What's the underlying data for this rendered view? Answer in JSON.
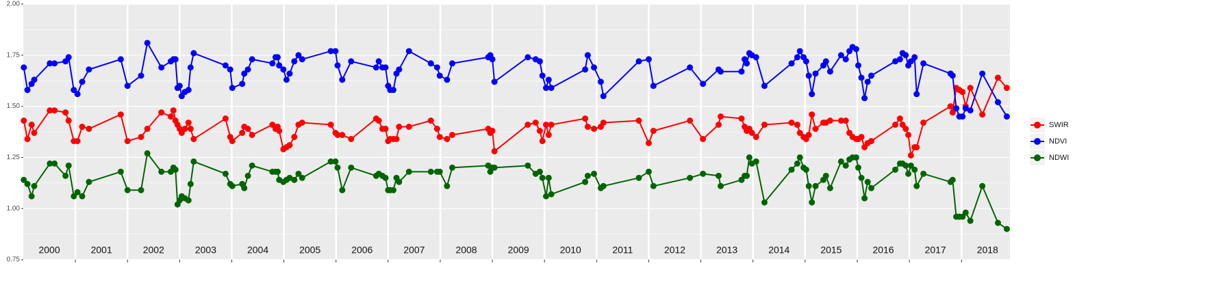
{
  "chart_data": {
    "type": "line",
    "x": [
      2000.01,
      2000.08,
      2000.16,
      2000.21,
      2000.51,
      2000.6,
      2000.81,
      2000.87,
      2000.97,
      2001.04,
      2001.13,
      2001.26,
      2001.87,
      2002.0,
      2002.26,
      2002.38,
      2002.65,
      2002.83,
      2002.88,
      2002.92,
      2002.96,
      2003.0,
      2003.04,
      2003.1,
      2003.17,
      2003.21,
      2003.27,
      2003.88,
      2003.97,
      2004.01,
      2004.2,
      2004.24,
      2004.31,
      2004.39,
      2004.78,
      2004.84,
      2004.88,
      2004.91,
      2004.99,
      2005.05,
      2005.11,
      2005.2,
      2005.28,
      2005.35,
      2005.9,
      2005.99,
      2006.03,
      2006.12,
      2006.29,
      2006.77,
      2006.82,
      2006.89,
      2006.95,
      2007.0,
      2007.04,
      2007.1,
      2007.16,
      2007.21,
      2007.4,
      2007.82,
      2007.94,
      2007.99,
      2008.13,
      2008.23,
      2008.92,
      2008.96,
      2009.0,
      2009.04,
      2009.68,
      2009.83,
      2009.91,
      2009.96,
      2010.03,
      2010.08,
      2010.13,
      2010.78,
      2010.83,
      2010.95,
      2011.08,
      2011.13,
      2011.81,
      2012.0,
      2012.09,
      2012.79,
      2013.04,
      2013.34,
      2013.38,
      2013.78,
      2013.84,
      2013.88,
      2013.93,
      2013.98,
      2014.06,
      2014.22,
      2014.74,
      2014.85,
      2014.9,
      2014.97,
      2015.02,
      2015.07,
      2015.13,
      2015.2,
      2015.35,
      2015.4,
      2015.48,
      2015.69,
      2015.78,
      2015.85,
      2015.91,
      2015.98,
      2016.02,
      2016.08,
      2016.14,
      2016.2,
      2016.27,
      2016.73,
      2016.82,
      2016.87,
      2016.93,
      2016.98,
      2017.03,
      2017.1,
      2017.14,
      2017.27,
      2017.79,
      2017.83,
      2017.9,
      2017.96,
      2018.02,
      2018.08,
      2018.17,
      2018.4,
      2018.7,
      2018.87
    ],
    "series": [
      {
        "name": "SWIR",
        "color": "#ff0000",
        "values": [
          1.43,
          1.34,
          1.41,
          1.37,
          1.48,
          1.48,
          1.47,
          1.43,
          1.33,
          1.33,
          1.4,
          1.39,
          1.46,
          1.33,
          1.35,
          1.39,
          1.47,
          1.45,
          1.48,
          1.43,
          1.41,
          1.39,
          1.37,
          1.39,
          1.42,
          1.39,
          1.34,
          1.44,
          1.35,
          1.33,
          1.37,
          1.4,
          1.39,
          1.36,
          1.41,
          1.39,
          1.4,
          1.38,
          1.29,
          1.3,
          1.31,
          1.35,
          1.41,
          1.42,
          1.41,
          1.37,
          1.36,
          1.36,
          1.34,
          1.44,
          1.43,
          1.39,
          1.39,
          1.33,
          1.34,
          1.34,
          1.34,
          1.4,
          1.4,
          1.43,
          1.39,
          1.35,
          1.34,
          1.36,
          1.39,
          1.37,
          1.38,
          1.28,
          1.41,
          1.42,
          1.38,
          1.33,
          1.41,
          1.36,
          1.41,
          1.44,
          1.4,
          1.39,
          1.4,
          1.42,
          1.43,
          1.32,
          1.38,
          1.43,
          1.34,
          1.41,
          1.45,
          1.44,
          1.4,
          1.38,
          1.39,
          1.37,
          1.35,
          1.41,
          1.42,
          1.41,
          1.37,
          1.35,
          1.34,
          1.36,
          1.46,
          1.39,
          1.42,
          1.42,
          1.43,
          1.43,
          1.43,
          1.37,
          1.35,
          1.34,
          1.34,
          1.35,
          1.3,
          1.32,
          1.33,
          1.41,
          1.44,
          1.41,
          1.39,
          1.36,
          1.26,
          1.3,
          1.3,
          1.42,
          1.5,
          1.47,
          1.59,
          1.58,
          1.57,
          1.5,
          1.59,
          1.46,
          1.64,
          1.59
        ]
      },
      {
        "name": "NDVI",
        "color": "#0000ff",
        "values": [
          1.69,
          1.58,
          1.61,
          1.63,
          1.71,
          1.71,
          1.72,
          1.74,
          1.58,
          1.56,
          1.62,
          1.68,
          1.73,
          1.6,
          1.65,
          1.81,
          1.69,
          1.72,
          1.73,
          1.73,
          1.59,
          1.6,
          1.55,
          1.57,
          1.58,
          1.69,
          1.76,
          1.7,
          1.68,
          1.59,
          1.61,
          1.66,
          1.68,
          1.73,
          1.71,
          1.74,
          1.74,
          1.7,
          1.68,
          1.63,
          1.66,
          1.72,
          1.75,
          1.73,
          1.77,
          1.77,
          1.7,
          1.63,
          1.72,
          1.69,
          1.72,
          1.69,
          1.69,
          1.6,
          1.58,
          1.58,
          1.66,
          1.68,
          1.77,
          1.71,
          1.69,
          1.65,
          1.63,
          1.71,
          1.74,
          1.75,
          1.73,
          1.62,
          1.74,
          1.73,
          1.72,
          1.65,
          1.59,
          1.63,
          1.59,
          1.68,
          1.75,
          1.69,
          1.62,
          1.55,
          1.72,
          1.73,
          1.6,
          1.69,
          1.61,
          1.68,
          1.67,
          1.67,
          1.73,
          1.71,
          1.76,
          1.75,
          1.74,
          1.6,
          1.71,
          1.74,
          1.77,
          1.74,
          1.72,
          1.65,
          1.56,
          1.66,
          1.7,
          1.72,
          1.67,
          1.75,
          1.73,
          1.77,
          1.79,
          1.78,
          1.7,
          1.64,
          1.54,
          1.62,
          1.65,
          1.72,
          1.73,
          1.76,
          1.75,
          1.7,
          1.72,
          1.74,
          1.56,
          1.71,
          1.66,
          1.65,
          1.49,
          1.45,
          1.45,
          1.49,
          1.48,
          1.66,
          1.52,
          1.45
        ]
      },
      {
        "name": "NDWI",
        "color": "#006400",
        "values": [
          1.14,
          1.12,
          1.06,
          1.11,
          1.22,
          1.22,
          1.16,
          1.21,
          1.06,
          1.08,
          1.06,
          1.13,
          1.18,
          1.09,
          1.09,
          1.27,
          1.18,
          1.18,
          1.2,
          1.19,
          1.02,
          1.04,
          1.06,
          1.05,
          1.04,
          1.12,
          1.23,
          1.17,
          1.12,
          1.11,
          1.12,
          1.1,
          1.16,
          1.21,
          1.18,
          1.18,
          1.18,
          1.14,
          1.13,
          1.14,
          1.15,
          1.14,
          1.17,
          1.15,
          1.23,
          1.23,
          1.2,
          1.09,
          1.2,
          1.16,
          1.17,
          1.16,
          1.15,
          1.09,
          1.09,
          1.09,
          1.15,
          1.13,
          1.18,
          1.18,
          1.18,
          1.18,
          1.11,
          1.2,
          1.21,
          1.18,
          1.2,
          1.2,
          1.21,
          1.17,
          1.18,
          1.15,
          1.06,
          1.15,
          1.07,
          1.13,
          1.16,
          1.17,
          1.1,
          1.11,
          1.15,
          1.18,
          1.11,
          1.15,
          1.17,
          1.16,
          1.11,
          1.14,
          1.16,
          1.16,
          1.25,
          1.22,
          1.23,
          1.03,
          1.19,
          1.22,
          1.25,
          1.2,
          1.19,
          1.11,
          1.03,
          1.11,
          1.14,
          1.16,
          1.1,
          1.23,
          1.21,
          1.24,
          1.25,
          1.25,
          1.2,
          1.15,
          1.05,
          1.13,
          1.1,
          1.19,
          1.22,
          1.22,
          1.21,
          1.17,
          1.21,
          1.19,
          1.11,
          1.17,
          1.13,
          1.14,
          0.96,
          0.96,
          0.96,
          0.98,
          0.94,
          1.11,
          0.93,
          0.9
        ]
      }
    ],
    "xlim": [
      2000,
      2018.93
    ],
    "ylim": [
      0.75,
      2.0
    ],
    "yticks": [
      {
        "value": 0.75,
        "label": "0.75"
      },
      {
        "value": 1.0,
        "label": "1.00"
      },
      {
        "value": 1.25,
        "label": "1.25"
      },
      {
        "value": 1.5,
        "label": "1.50"
      },
      {
        "value": 1.75,
        "label": "1.75"
      },
      {
        "value": 2.0,
        "label": "2.00"
      }
    ],
    "vlines": [
      2001,
      2002,
      2003,
      2004,
      2005,
      2006,
      2007,
      2008,
      2009,
      2010,
      2011,
      2012,
      2013,
      2014,
      2015,
      2016,
      2017,
      2018
    ],
    "periods": [
      "2000",
      "2001",
      "2002",
      "2003",
      "2004",
      "2005",
      "2006",
      "2007",
      "2008",
      "2009",
      "2010",
      "2011",
      "2012",
      "2013",
      "2014",
      "2015",
      "2016",
      "2017",
      "2018"
    ],
    "grid": true,
    "legend": "right"
  }
}
